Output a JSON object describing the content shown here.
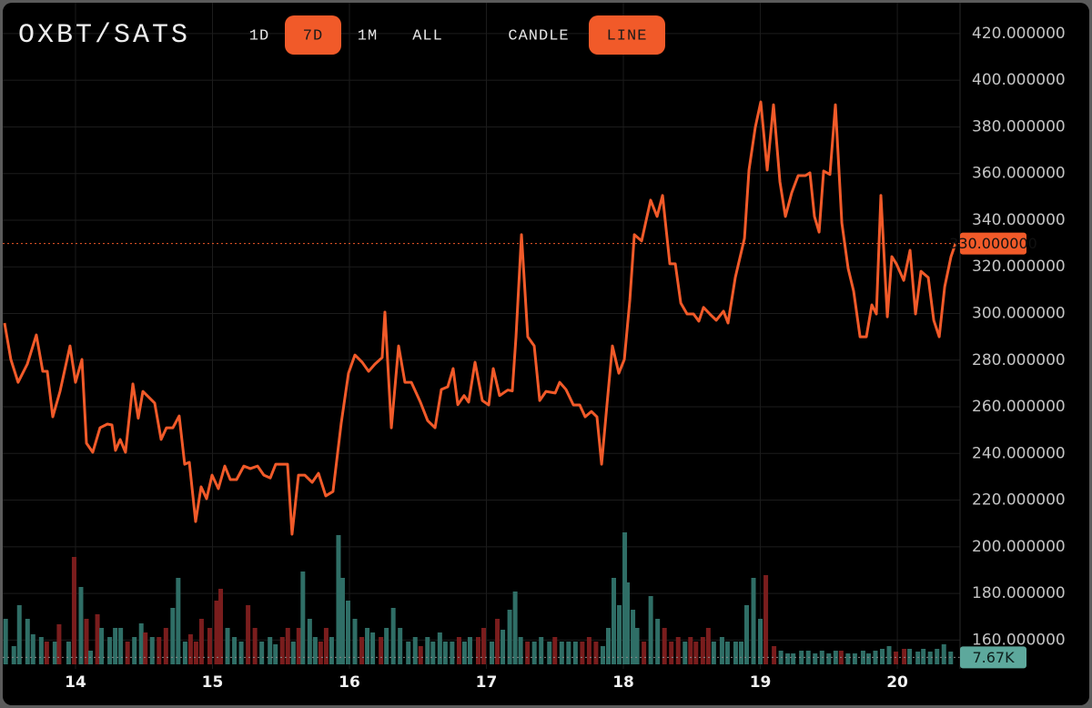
{
  "header": {
    "title": "OXBT/SATS",
    "ranges": [
      "1D",
      "7D",
      "1M",
      "ALL"
    ],
    "active_range": "7D",
    "modes": [
      "CANDLE",
      "LINE"
    ],
    "active_mode": "LINE"
  },
  "chart_data": {
    "type": "line",
    "color": "#f15a29",
    "x": [
      13.482,
      13.528,
      13.581,
      13.648,
      13.714,
      13.761,
      13.794,
      13.834,
      13.887,
      13.96,
      14.0,
      14.047,
      14.08,
      14.126,
      14.179,
      14.233,
      14.266,
      14.292,
      14.326,
      14.365,
      14.419,
      14.458,
      14.492,
      14.578,
      14.625,
      14.664,
      14.711,
      14.757,
      14.797,
      14.831,
      14.877,
      14.917,
      14.957,
      14.997,
      15.043,
      15.09,
      15.13,
      15.176,
      15.229,
      15.276,
      15.329,
      15.375,
      15.422,
      15.462,
      15.508,
      15.548,
      15.581,
      15.628,
      15.674,
      15.728,
      15.774,
      15.827,
      15.88,
      15.94,
      15.993,
      16.04,
      16.093,
      16.14,
      16.186,
      16.239,
      16.259,
      16.306,
      16.359,
      16.405,
      16.452,
      16.518,
      16.571,
      16.625,
      16.671,
      16.718,
      16.757,
      16.791,
      16.837,
      16.87,
      16.917,
      16.97,
      17.017,
      17.05,
      17.096,
      17.156,
      17.189,
      17.216,
      17.256,
      17.302,
      17.349,
      17.389,
      17.435,
      17.502,
      17.535,
      17.581,
      17.635,
      17.681,
      17.721,
      17.767,
      17.807,
      17.841,
      17.88,
      17.92,
      17.967,
      18.007,
      18.047,
      18.08,
      18.133,
      18.199,
      18.246,
      18.286,
      18.339,
      18.379,
      18.419,
      18.465,
      18.512,
      18.551,
      18.585,
      18.631,
      18.678,
      18.731,
      18.764,
      18.817,
      18.884,
      18.917,
      18.963,
      19.003,
      19.05,
      19.096,
      19.143,
      19.183,
      19.229,
      19.276,
      19.329,
      19.362,
      19.395,
      19.429,
      19.462,
      19.508,
      19.548,
      19.595,
      19.641,
      19.681,
      19.728,
      19.774,
      19.814,
      19.847,
      19.88,
      19.927,
      19.96,
      19.993,
      20.047,
      20.093,
      20.133,
      20.173,
      20.226,
      20.266,
      20.306,
      20.346,
      20.392,
      20.425
    ],
    "values": [
      295.9,
      280.3,
      270.5,
      278.3,
      290.8,
      275.2,
      275.2,
      255.7,
      266.6,
      286.1,
      270.5,
      280.3,
      244.4,
      240.5,
      251.0,
      252.6,
      252.2,
      241.3,
      246.0,
      240.5,
      269.8,
      255.1,
      266.6,
      261.6,
      246.0,
      251.0,
      251.0,
      256.1,
      235.4,
      236.2,
      210.8,
      225.7,
      220.6,
      230.7,
      224.9,
      234.6,
      228.8,
      228.8,
      234.6,
      233.5,
      234.6,
      230.7,
      229.5,
      235.4,
      235.4,
      235.4,
      205.4,
      230.7,
      230.7,
      227.6,
      231.5,
      221.8,
      223.7,
      253.0,
      274.4,
      282.2,
      279.1,
      275.2,
      278.3,
      281.1,
      300.6,
      251.0,
      286.1,
      270.5,
      270.5,
      262.0,
      254.1,
      251.0,
      267.4,
      268.6,
      276.4,
      260.9,
      264.8,
      262.0,
      279.1,
      262.7,
      260.8,
      276.4,
      264.8,
      267.2,
      266.8,
      290.0,
      333.8,
      290.0,
      286.1,
      262.7,
      266.6,
      265.9,
      270.5,
      267.4,
      260.8,
      260.8,
      255.7,
      258.0,
      255.7,
      235.4,
      260.8,
      286.1,
      274.4,
      280.3,
      305.7,
      333.8,
      331.1,
      348.6,
      341.6,
      350.6,
      321.3,
      321.3,
      304.5,
      299.8,
      299.8,
      296.7,
      302.6,
      299.8,
      297.1,
      301.0,
      295.9,
      315.4,
      332.2,
      361.5,
      379.8,
      390.7,
      361.5,
      389.5,
      356.4,
      341.6,
      351.8,
      359.1,
      359.1,
      360.3,
      341.6,
      334.9,
      361.1,
      359.6,
      389.5,
      338.8,
      319.3,
      309.6,
      290.0,
      290.0,
      303.7,
      299.8,
      350.6,
      298.6,
      324.4,
      321.3,
      314.2,
      327.1,
      299.8,
      318.1,
      315.4,
      297.1,
      290.0,
      311.5,
      324.4,
      330
    ],
    "last_price": {
      "value": 330,
      "label": "330.000000"
    },
    "xlim": [
      13.482,
      20.458
    ],
    "xticks": [
      14,
      15,
      16,
      17,
      18,
      19,
      20
    ],
    "ylim": [
      149.6,
      434.4
    ],
    "yticks": [
      {
        "value": 160,
        "label": "160.000000"
      },
      {
        "value": 180,
        "label": "180.000000"
      },
      {
        "value": 200,
        "label": "200.000000"
      },
      {
        "value": 220,
        "label": "220.000000"
      },
      {
        "value": 240,
        "label": "240.000000"
      },
      {
        "value": 260,
        "label": "260.000000"
      },
      {
        "value": 280,
        "label": "280.000000"
      },
      {
        "value": 300,
        "label": "300.000000"
      },
      {
        "value": 320,
        "label": "320.000000"
      },
      {
        "value": 340,
        "label": "340.000000"
      },
      {
        "value": 360,
        "label": "360.000000"
      },
      {
        "value": 380,
        "label": "380.000000"
      },
      {
        "value": 400,
        "label": "400.000000"
      },
      {
        "value": 420,
        "label": "420.000000"
      }
    ],
    "grid": true,
    "volume": {
      "type": "bar",
      "y2lim": [
        0,
        730
      ],
      "x": [
        13.49,
        13.55,
        13.59,
        13.65,
        13.69,
        13.75,
        13.79,
        13.85,
        13.88,
        13.95,
        13.99,
        14.04,
        14.08,
        14.11,
        14.16,
        14.19,
        14.25,
        14.29,
        14.33,
        14.38,
        14.43,
        14.48,
        14.51,
        14.56,
        14.61,
        14.66,
        14.71,
        14.75,
        14.8,
        14.84,
        14.88,
        14.92,
        14.98,
        15.03,
        15.06,
        15.11,
        15.16,
        15.21,
        15.26,
        15.31,
        15.36,
        15.42,
        15.46,
        15.51,
        15.55,
        15.59,
        15.63,
        15.66,
        15.71,
        15.75,
        15.79,
        15.83,
        15.87,
        15.92,
        15.95,
        15.99,
        16.04,
        16.09,
        16.13,
        16.17,
        16.23,
        16.27,
        16.32,
        16.37,
        16.43,
        16.48,
        16.52,
        16.57,
        16.61,
        16.66,
        16.7,
        16.75,
        16.8,
        16.84,
        16.88,
        16.94,
        16.98,
        17.04,
        17.08,
        17.12,
        17.17,
        17.21,
        17.25,
        17.3,
        17.35,
        17.4,
        17.46,
        17.5,
        17.55,
        17.6,
        17.65,
        17.7,
        17.75,
        17.8,
        17.85,
        17.89,
        17.93,
        17.97,
        18.01,
        18.03,
        18.07,
        18.1,
        18.15,
        18.2,
        18.25,
        18.3,
        18.35,
        18.4,
        18.45,
        18.49,
        18.53,
        18.58,
        18.62,
        18.66,
        18.72,
        18.76,
        18.82,
        18.86,
        18.9,
        18.95,
        19.0,
        19.04,
        19.1,
        19.15,
        19.2,
        19.24,
        19.3,
        19.35,
        19.4,
        19.45,
        19.5,
        19.55,
        19.59,
        19.64,
        19.69,
        19.75,
        19.79,
        19.84,
        19.89,
        19.94,
        19.99,
        20.05,
        20.09,
        20.15,
        20.19,
        20.24,
        20.29,
        20.34,
        20.39
      ],
      "values": [
        50,
        20,
        65,
        50,
        33,
        30,
        25,
        25,
        44,
        25,
        118,
        85,
        50,
        15,
        55,
        40,
        30,
        40,
        40,
        25,
        30,
        45,
        35,
        30,
        30,
        40,
        62,
        95,
        25,
        33,
        25,
        50,
        40,
        70,
        83,
        40,
        30,
        25,
        65,
        40,
        25,
        30,
        22,
        30,
        40,
        25,
        40,
        102,
        50,
        30,
        25,
        40,
        30,
        142,
        95,
        70,
        50,
        30,
        40,
        35,
        30,
        40,
        62,
        40,
        25,
        30,
        20,
        30,
        25,
        35,
        25,
        25,
        30,
        25,
        30,
        30,
        40,
        25,
        50,
        38,
        60,
        80,
        30,
        25,
        25,
        30,
        25,
        30,
        25,
        25,
        25,
        25,
        30,
        25,
        20,
        40,
        95,
        65,
        145,
        90,
        60,
        40,
        25,
        75,
        50,
        40,
        25,
        30,
        25,
        30,
        25,
        30,
        40,
        25,
        30,
        25,
        25,
        25,
        65,
        95,
        50,
        98,
        20,
        15,
        12,
        12,
        15,
        15,
        12,
        15,
        12,
        15,
        15,
        12,
        12,
        15,
        12,
        15,
        17,
        20,
        14,
        17,
        17,
        14,
        17,
        14,
        17,
        22,
        14
      ],
      "colors": [
        "#2f6e66",
        "#2f6e66",
        "#2f6e66",
        "#2f6e66",
        "#2f6e66",
        "#2f6e66",
        "#7a1d1d",
        "#2f6e66",
        "#7a1d1d",
        "#2f6e66",
        "#7a1d1d",
        "#2f6e66",
        "#7a1d1d",
        "#2f6e66",
        "#7a1d1d",
        "#2f6e66",
        "#2f6e66",
        "#2f6e66",
        "#2f6e66",
        "#7a1d1d",
        "#2f6e66",
        "#2f6e66",
        "#7a1d1d",
        "#2f6e66",
        "#7a1d1d",
        "#7a1d1d",
        "#2f6e66",
        "#2f6e66",
        "#2f6e66",
        "#7a1d1d",
        "#7a1d1d",
        "#7a1d1d",
        "#7a1d1d",
        "#7a1d1d",
        "#7a1d1d",
        "#2f6e66",
        "#2f6e66",
        "#2f6e66",
        "#7a1d1d",
        "#7a1d1d",
        "#2f6e66",
        "#2f6e66",
        "#2f6e66",
        "#7a1d1d",
        "#7a1d1d",
        "#2f6e66",
        "#7a1d1d",
        "#2f6e66",
        "#2f6e66",
        "#2f6e66",
        "#7a1d1d",
        "#7a1d1d",
        "#2f6e66",
        "#2f6e66",
        "#2f6e66",
        "#2f6e66",
        "#2f6e66",
        "#7a1d1d",
        "#2f6e66",
        "#2f6e66",
        "#7a1d1d",
        "#2f6e66",
        "#2f6e66",
        "#2f6e66",
        "#2f6e66",
        "#2f6e66",
        "#7a1d1d",
        "#2f6e66",
        "#2f6e66",
        "#2f6e66",
        "#2f6e66",
        "#2f6e66",
        "#7a1d1d",
        "#2f6e66",
        "#2f6e66",
        "#7a1d1d",
        "#7a1d1d",
        "#2f6e66",
        "#7a1d1d",
        "#2f6e66",
        "#2f6e66",
        "#2f6e66",
        "#2f6e66",
        "#7a1d1d",
        "#2f6e66",
        "#2f6e66",
        "#2f6e66",
        "#7a1d1d",
        "#2f6e66",
        "#2f6e66",
        "#2f6e66",
        "#7a1d1d",
        "#7a1d1d",
        "#7a1d1d",
        "#2f6e66",
        "#2f6e66",
        "#2f6e66",
        "#2f6e66",
        "#2f6e66",
        "#2f6e66",
        "#2f6e66",
        "#2f6e66",
        "#7a1d1d",
        "#2f6e66",
        "#2f6e66",
        "#7a1d1d",
        "#7a1d1d",
        "#7a1d1d",
        "#2f6e66",
        "#7a1d1d",
        "#7a1d1d",
        "#7a1d1d",
        "#7a1d1d",
        "#2f6e66",
        "#2f6e66",
        "#2f6e66",
        "#2f6e66",
        "#2f6e66",
        "#2f6e66",
        "#2f6e66",
        "#2f6e66",
        "#7a1d1d",
        "#7a1d1d",
        "#2f6e66",
        "#2f6e66",
        "#2f6e66",
        "#2f6e66",
        "#2f6e66",
        "#2f6e66",
        "#2f6e66",
        "#2f6e66",
        "#2f6e66",
        "#7a1d1d",
        "#2f6e66",
        "#2f6e66",
        "#2f6e66",
        "#2f6e66",
        "#2f6e66",
        "#2f6e66",
        "#2f6e66",
        "#7a1d1d",
        "#7a1d1d",
        "#2f6e66",
        "#2f6e66",
        "#2f6e66",
        "#2f6e66",
        "#2f6e66",
        "#2f6e66",
        "#2f6e66"
      ],
      "last": {
        "value": 7.67,
        "label": "7.67K"
      }
    }
  }
}
